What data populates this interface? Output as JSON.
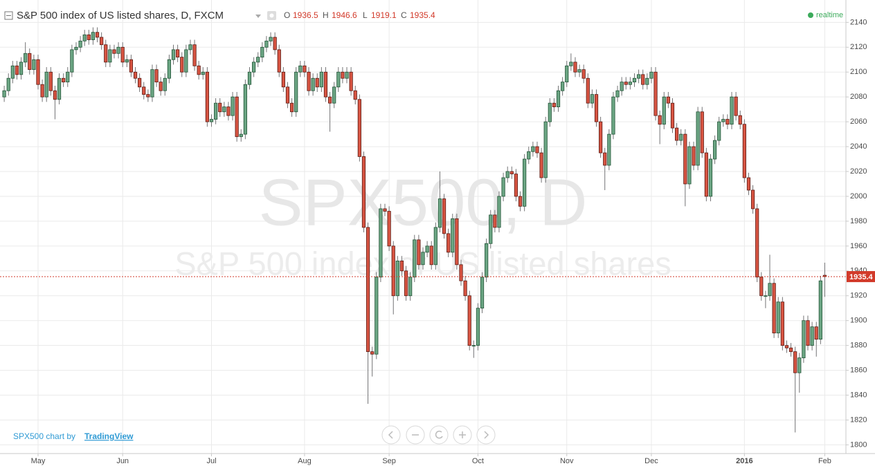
{
  "chart_data": {
    "type": "candlestick",
    "title": "S&P 500 index of US listed shares, D, FXCM",
    "ohlc_labels": [
      "O",
      "H",
      "L",
      "C"
    ],
    "status": "realtime",
    "watermark": [
      "SPX500, D",
      "S&P 500 index of US listed shares"
    ],
    "credit": [
      "SPX500 chart by",
      "TradingView"
    ],
    "colors": {
      "up": "#6ba583",
      "up_border": "#225437",
      "down": "#d75442",
      "down_border": "#5b1a13",
      "wick": "#737375"
    },
    "grid": true,
    "xlim": [
      -1,
      199
    ],
    "xticks": [
      {
        "value": 8,
        "label": "May"
      },
      {
        "value": 28,
        "label": "Jun"
      },
      {
        "value": 49,
        "label": "Jul"
      },
      {
        "value": 71,
        "label": "Aug"
      },
      {
        "value": 91,
        "label": "Sep"
      },
      {
        "value": 112,
        "label": "Oct"
      },
      {
        "value": 133,
        "label": "Nov"
      },
      {
        "value": 153,
        "label": "Dec"
      },
      {
        "value": 175,
        "label": "2016"
      },
      {
        "value": 194,
        "label": "Feb"
      }
    ],
    "ylim": [
      1793,
      2158
    ],
    "yticks": [
      1800,
      1820,
      1840,
      1860,
      1880,
      1900,
      1920,
      1940,
      1960,
      1980,
      2000,
      2020,
      2040,
      2060,
      2080,
      2100,
      2120,
      2140
    ],
    "open": [
      2080,
      2085,
      2095,
      2105,
      2098,
      2108,
      2115,
      2102,
      2110,
      2090,
      2080,
      2100,
      2085,
      2078,
      2095,
      2092,
      2100,
      2118,
      2120,
      2125,
      2130,
      2126,
      2132,
      2128,
      2122,
      2108,
      2118,
      2115,
      2120,
      2108,
      2110,
      2100,
      2095,
      2088,
      2082,
      2080,
      2102,
      2092,
      2085,
      2095,
      2110,
      2118,
      2112,
      2100,
      2118,
      2122,
      2105,
      2098,
      2100,
      2060,
      2062,
      2075,
      2068,
      2072,
      2065,
      2080,
      2048,
      2050,
      2090,
      2100,
      2108,
      2112,
      2120,
      2125,
      2128,
      2118,
      2100,
      2088,
      2075,
      2068,
      2100,
      2105,
      2100,
      2085,
      2095,
      2088,
      2100,
      2080,
      2075,
      2088,
      2100,
      2095,
      2100,
      2085,
      2078,
      2032,
      1975,
      1875,
      1873,
      1935,
      1990,
      1988,
      1960,
      1920,
      1948,
      1940,
      1920,
      1935,
      1965,
      1945,
      1955,
      1960,
      1945,
      1975,
      1998,
      1970,
      1955,
      1982,
      1945,
      1932,
      1920,
      1880,
      1880,
      1910,
      1935,
      1962,
      1985,
      1975,
      2000,
      2015,
      2020,
      2018,
      2000,
      1992,
      2030,
      2036,
      2040,
      2035,
      2015,
      2060,
      2075,
      2072,
      2085,
      2092,
      2105,
      2108,
      2100,
      2102,
      2095,
      2075,
      2082,
      2060,
      2035,
      2025,
      2050,
      2080,
      2085,
      2092,
      2090,
      2092,
      2095,
      2098,
      2090,
      2095,
      2100,
      2065,
      2058,
      2080,
      2075,
      2055,
      2045,
      2050,
      2010,
      2040,
      2025,
      2068,
      2035,
      2000,
      2030,
      2045,
      2060,
      2062,
      2058,
      2080,
      2065,
      2058,
      2015,
      2005,
      1990,
      1935,
      1920,
      1920,
      1930,
      1890,
      1915,
      1880,
      1878,
      1875,
      1858,
      1870,
      1900,
      1880,
      1895,
      1885,
      1936.5
    ],
    "high": [
      2089,
      2099,
      2109,
      2109,
      2112,
      2124,
      2119,
      2114,
      2114,
      2094,
      2104,
      2104,
      2089,
      2099,
      2099,
      2104,
      2122,
      2124,
      2129,
      2134,
      2134,
      2136,
      2136,
      2132,
      2126,
      2122,
      2122,
      2124,
      2124,
      2114,
      2114,
      2104,
      2099,
      2092,
      2086,
      2106,
      2106,
      2096,
      2099,
      2114,
      2122,
      2122,
      2116,
      2122,
      2126,
      2126,
      2109,
      2104,
      2104,
      2066,
      2079,
      2079,
      2076,
      2076,
      2084,
      2084,
      2054,
      2094,
      2104,
      2112,
      2116,
      2124,
      2129,
      2132,
      2132,
      2122,
      2104,
      2092,
      2079,
      2104,
      2109,
      2109,
      2104,
      2099,
      2099,
      2104,
      2104,
      2084,
      2092,
      2104,
      2104,
      2104,
      2104,
      2089,
      2082,
      2036,
      1979,
      1879,
      1939,
      1994,
      1994,
      1992,
      1964,
      1952,
      1952,
      1944,
      1939,
      1969,
      1969,
      1959,
      1964,
      1964,
      1979,
      2020,
      2002,
      1974,
      1986,
      1986,
      1949,
      1936,
      1924,
      1884,
      1914,
      1939,
      1966,
      1989,
      1989,
      2004,
      2019,
      2024,
      2024,
      2022,
      2004,
      2034,
      2040,
      2044,
      2044,
      2039,
      2064,
      2079,
      2079,
      2089,
      2096,
      2109,
      2115,
      2112,
      2106,
      2106,
      2099,
      2086,
      2086,
      2064,
      2039,
      2054,
      2084,
      2089,
      2096,
      2096,
      2096,
      2099,
      2102,
      2102,
      2099,
      2104,
      2104,
      2069,
      2084,
      2084,
      2079,
      2059,
      2054,
      2054,
      2044,
      2044,
      2072,
      2072,
      2039,
      2034,
      2049,
      2064,
      2066,
      2066,
      2084,
      2084,
      2069,
      2062,
      2019,
      2009,
      1994,
      1939,
      1924,
      1953,
      1934,
      1919,
      1919,
      1884,
      1882,
      1879,
      1874,
      1904,
      1904,
      1899,
      1899,
      1936,
      1946.6
    ],
    "low": [
      2076,
      2081,
      2091,
      2094,
      2094,
      2104,
      2098,
      2098,
      2086,
      2076,
      2076,
      2081,
      2062,
      2074,
      2088,
      2088,
      2096,
      2114,
      2116,
      2121,
      2122,
      2122,
      2124,
      2118,
      2104,
      2104,
      2111,
      2111,
      2104,
      2104,
      2096,
      2091,
      2084,
      2078,
      2076,
      2076,
      2088,
      2081,
      2081,
      2091,
      2106,
      2108,
      2096,
      2096,
      2114,
      2101,
      2094,
      2094,
      2056,
      2056,
      2058,
      2064,
      2064,
      2061,
      2061,
      2044,
      2044,
      2046,
      2086,
      2096,
      2104,
      2108,
      2116,
      2121,
      2114,
      2096,
      2084,
      2071,
      2064,
      2064,
      2096,
      2096,
      2081,
      2081,
      2084,
      2084,
      2076,
      2052,
      2071,
      2084,
      2091,
      2091,
      2081,
      2074,
      2028,
      1971,
      1833,
      1855,
      1869,
      1931,
      1984,
      1956,
      1905,
      1916,
      1936,
      1916,
      1916,
      1931,
      1941,
      1941,
      1951,
      1941,
      1941,
      1971,
      1966,
      1951,
      1951,
      1941,
      1928,
      1916,
      1876,
      1870,
      1876,
      1906,
      1931,
      1958,
      1971,
      1971,
      1996,
      2011,
      2014,
      1996,
      1988,
      1988,
      2026,
      2032,
      2031,
      2011,
      2011,
      2056,
      2068,
      2068,
      2081,
      2088,
      2101,
      2096,
      2096,
      2091,
      2071,
      2071,
      2056,
      2031,
      2005,
      2021,
      2046,
      2076,
      2081,
      2086,
      2086,
      2088,
      2091,
      2086,
      2086,
      2091,
      2061,
      2042,
      2054,
      2071,
      2051,
      2041,
      2041,
      1992,
      2006,
      2021,
      2021,
      2031,
      1996,
      1996,
      2026,
      2041,
      2056,
      2054,
      2054,
      2061,
      2054,
      2011,
      2001,
      1986,
      1931,
      1916,
      1910,
      1916,
      1886,
      1886,
      1876,
      1874,
      1871,
      1810,
      1842,
      1866,
      1876,
      1876,
      1871,
      1881,
      1919.1
    ],
    "close": [
      2085,
      2095,
      2105,
      2098,
      2108,
      2115,
      2102,
      2110,
      2090,
      2080,
      2100,
      2085,
      2078,
      2095,
      2092,
      2100,
      2118,
      2120,
      2125,
      2130,
      2126,
      2132,
      2128,
      2122,
      2108,
      2118,
      2115,
      2120,
      2108,
      2110,
      2100,
      2095,
      2088,
      2082,
      2080,
      2102,
      2092,
      2085,
      2095,
      2110,
      2118,
      2112,
      2100,
      2118,
      2122,
      2105,
      2098,
      2100,
      2060,
      2062,
      2075,
      2068,
      2072,
      2065,
      2080,
      2048,
      2050,
      2090,
      2100,
      2108,
      2112,
      2120,
      2125,
      2128,
      2118,
      2100,
      2088,
      2075,
      2068,
      2100,
      2105,
      2100,
      2085,
      2095,
      2088,
      2100,
      2080,
      2075,
      2088,
      2100,
      2095,
      2100,
      2085,
      2078,
      2032,
      1975,
      1875,
      1873,
      1935,
      1990,
      1988,
      1960,
      1920,
      1948,
      1940,
      1920,
      1935,
      1965,
      1945,
      1955,
      1960,
      1945,
      1975,
      1998,
      1970,
      1955,
      1982,
      1945,
      1932,
      1920,
      1880,
      1880,
      1910,
      1935,
      1962,
      1985,
      1975,
      2000,
      2015,
      2020,
      2018,
      2000,
      1992,
      2030,
      2036,
      2040,
      2035,
      2015,
      2060,
      2075,
      2072,
      2085,
      2092,
      2105,
      2108,
      2100,
      2102,
      2095,
      2075,
      2082,
      2060,
      2035,
      2025,
      2050,
      2080,
      2085,
      2092,
      2090,
      2092,
      2095,
      2098,
      2090,
      2095,
      2100,
      2065,
      2058,
      2080,
      2075,
      2055,
      2045,
      2050,
      2010,
      2040,
      2025,
      2068,
      2035,
      2000,
      2030,
      2045,
      2060,
      2062,
      2058,
      2080,
      2065,
      2058,
      2015,
      2005,
      1990,
      1935,
      1920,
      1920,
      1930,
      1890,
      1915,
      1880,
      1878,
      1875,
      1858,
      1870,
      1900,
      1880,
      1895,
      1885,
      1932,
      1935.4
    ]
  }
}
